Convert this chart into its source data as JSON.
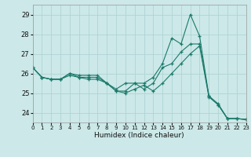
{
  "xlabel": "Humidex (Indice chaleur)",
  "background_color": "#cce8e8",
  "line_color": "#1a7a6a",
  "grid_color": "#aad0d0",
  "xlim": [
    0,
    23
  ],
  "ylim": [
    23.5,
    29.5
  ],
  "yticks": [
    24,
    25,
    26,
    27,
    28,
    29
  ],
  "xticks": [
    0,
    1,
    2,
    3,
    4,
    5,
    6,
    7,
    8,
    9,
    10,
    11,
    12,
    13,
    14,
    15,
    16,
    17,
    18,
    19,
    20,
    21,
    22,
    23
  ],
  "series": [
    [
      26.3,
      25.8,
      25.7,
      25.7,
      25.9,
      25.8,
      25.7,
      25.7,
      25.5,
      25.1,
      25.0,
      25.2,
      25.4,
      25.1,
      25.5,
      26.0,
      26.5,
      27.0,
      27.4,
      24.8,
      24.4,
      23.7,
      23.7,
      23.65
    ],
    [
      26.3,
      25.8,
      25.7,
      25.7,
      26.0,
      25.8,
      25.8,
      25.8,
      25.5,
      25.1,
      25.1,
      25.5,
      25.2,
      25.5,
      26.3,
      26.5,
      27.1,
      27.5,
      27.5,
      24.85,
      24.4,
      23.7,
      23.7,
      23.65
    ],
    [
      26.3,
      25.8,
      25.7,
      25.7,
      26.0,
      25.9,
      25.9,
      25.9,
      25.5,
      25.2,
      25.5,
      25.5,
      25.5,
      25.8,
      26.5,
      27.8,
      27.5,
      29.0,
      27.9,
      24.85,
      24.45,
      23.7,
      23.7,
      23.65
    ]
  ]
}
